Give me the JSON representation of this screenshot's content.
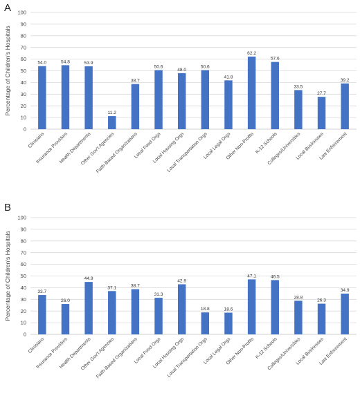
{
  "chart_data": [
    {
      "type": "bar",
      "panel_label": "A",
      "ylabel": "Percentage of Children's Hospitals",
      "ylim": [
        0,
        100
      ],
      "yticks": [
        0,
        10,
        20,
        30,
        40,
        50,
        60,
        70,
        80,
        90,
        100
      ],
      "grid": true,
      "color": "#4472C4",
      "categories": [
        "Clinicians",
        "Insurance Providers",
        "Health Departments",
        "Other Gov't Agencies",
        "Faith-Based Organizations",
        "Local Food Orgs",
        "Local Housing Orgs",
        "Local Transportation Orgs",
        "Local Legal Orgs",
        "Other Non-Profits",
        "K-12 Schools",
        "Colleges/Universities",
        "Local Businesses",
        "Law Enforcement"
      ],
      "values": [
        54.0,
        54.8,
        53.9,
        11.2,
        38.7,
        50.6,
        48.0,
        50.6,
        41.8,
        62.2,
        57.6,
        33.5,
        27.7,
        39.2
      ],
      "value_labels": [
        "54.0",
        "54.8",
        "53.9",
        "11.2",
        "38.7",
        "50.6",
        "48.0",
        "50.6",
        "41.8",
        "62.2",
        "57.6",
        "33.5",
        "27.7",
        "39.2"
      ]
    },
    {
      "type": "bar",
      "panel_label": "B",
      "ylabel": "Percentage of Children's Hospitals",
      "ylim": [
        0,
        100
      ],
      "yticks": [
        0,
        10,
        20,
        30,
        40,
        50,
        60,
        70,
        80,
        90,
        100
      ],
      "grid": true,
      "color": "#4472C4",
      "categories": [
        "Clinicians",
        "Insurance Providers",
        "Health Departments",
        "Other Gov't Agencies",
        "Faith-Based Organizations",
        "Local Food Orgs",
        "Local Housing Orgs",
        "Local Transportation Orgs",
        "Local Legal Orgs",
        "Other Non-Profits",
        "K-12 Schools",
        "Colleges/Universities",
        "Local Businesses",
        "Law Enforcement"
      ],
      "values": [
        33.7,
        26.0,
        44.9,
        37.1,
        38.7,
        31.3,
        42.9,
        18.8,
        18.6,
        47.1,
        46.5,
        28.8,
        26.3,
        34.9
      ],
      "value_labels": [
        "33.7",
        "26.0",
        "44.9",
        "37.1",
        "38.7",
        "31.3",
        "42.9",
        "18.8",
        "18.6",
        "47.1",
        "46.5",
        "28.8",
        "26.3",
        "34.9"
      ]
    }
  ]
}
